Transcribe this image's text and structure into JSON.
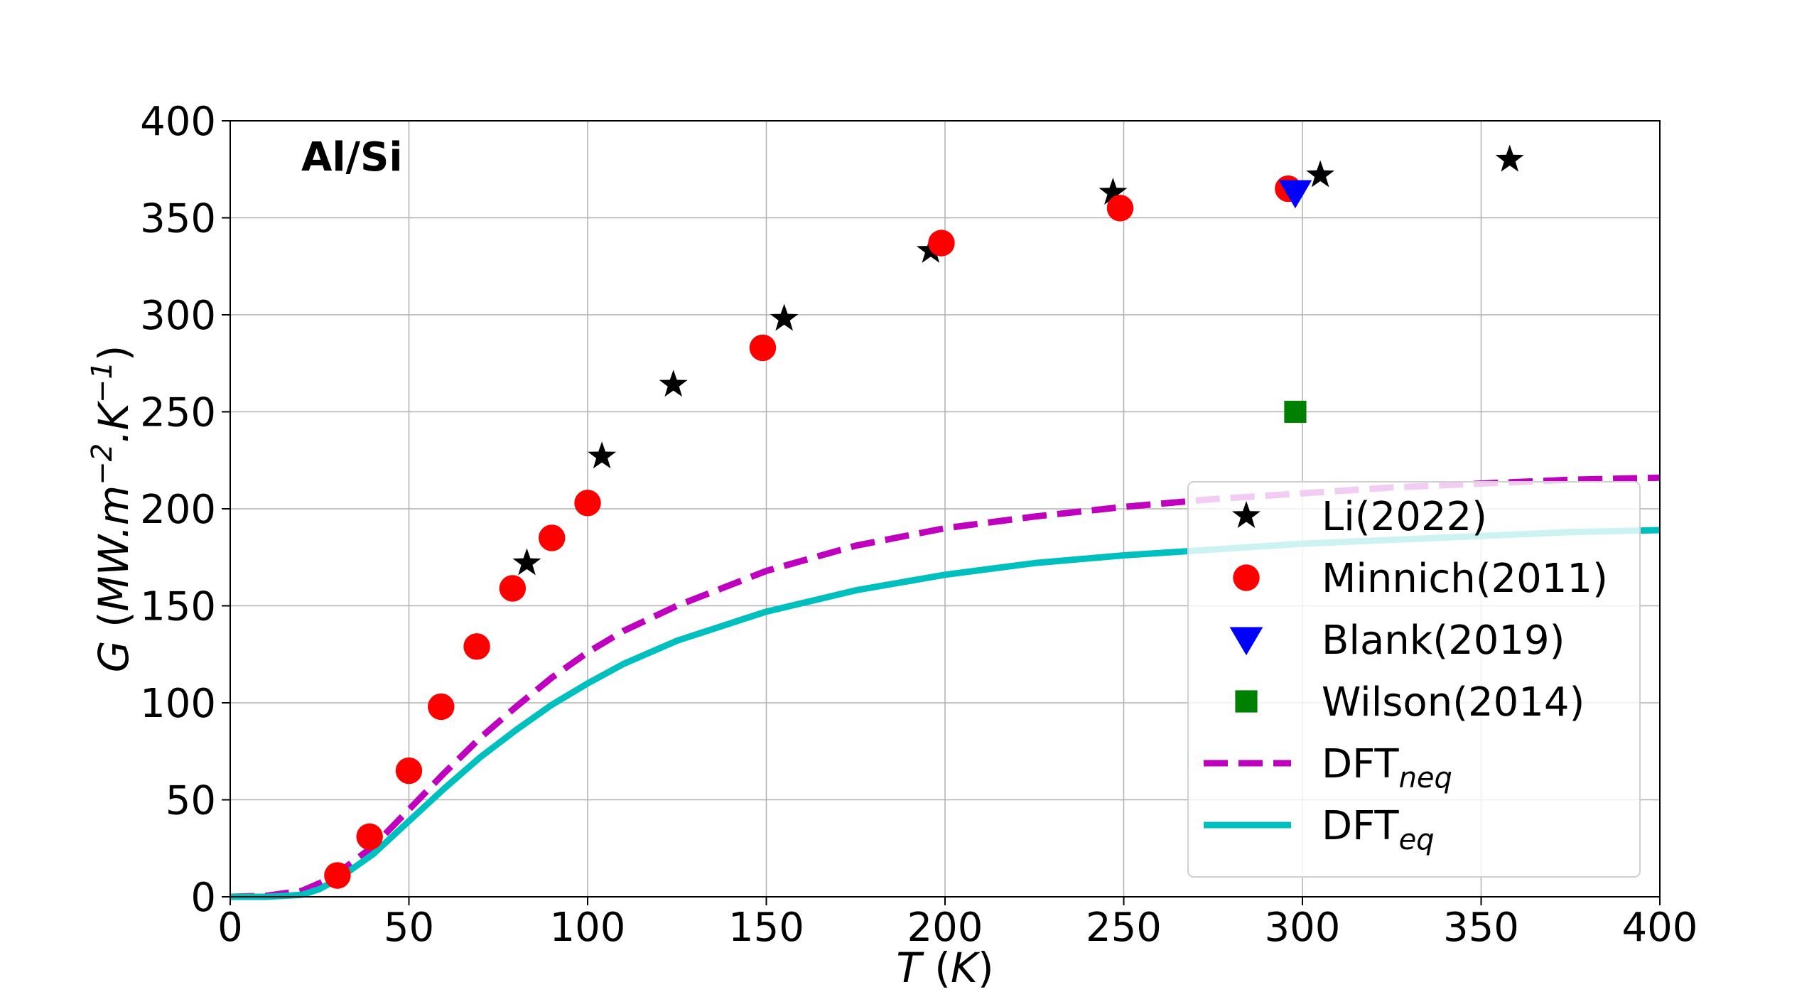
{
  "chart_data": {
    "type": "scatter",
    "title": "",
    "annotation": "Al/Si",
    "xlabel": {
      "var": "T",
      "unit": "K"
    },
    "ylabel": {
      "var": "G",
      "unit": "MW.m",
      "exp1": "−2",
      "unit2": ".K",
      "exp2": "−1"
    },
    "xlim": [
      0,
      400
    ],
    "ylim": [
      0,
      400
    ],
    "xticks": [
      0,
      50,
      100,
      150,
      200,
      250,
      300,
      350,
      400
    ],
    "yticks": [
      0,
      50,
      100,
      150,
      200,
      250,
      300,
      350,
      400
    ],
    "grid": true,
    "legend_position": "lower-right",
    "series": [
      {
        "name": "Li(2022)",
        "kind": "points",
        "marker": "star",
        "color": "#000000",
        "x": [
          83,
          104,
          124,
          155,
          196,
          247,
          305,
          358
        ],
        "y": [
          172,
          227,
          264,
          298,
          333,
          363,
          372,
          380
        ]
      },
      {
        "name": "Minnich(2011)",
        "kind": "points",
        "marker": "circle",
        "color": "#ff0000",
        "x": [
          30,
          39,
          50,
          59,
          69,
          79,
          90,
          100,
          149,
          199,
          249,
          296
        ],
        "y": [
          11,
          31,
          65,
          98,
          129,
          159,
          185,
          203,
          283,
          337,
          355,
          365
        ]
      },
      {
        "name": "Blank(2019)",
        "kind": "points",
        "marker": "triangle-down",
        "color": "#0000ff",
        "x": [
          298
        ],
        "y": [
          363
        ]
      },
      {
        "name": "Wilson(2014)",
        "kind": "points",
        "marker": "square",
        "color": "#008000",
        "x": [
          298
        ],
        "y": [
          250
        ]
      },
      {
        "name": "DFT",
        "sub": "neq",
        "kind": "line",
        "style": "dashed",
        "color": "#bf00bf",
        "x": [
          0,
          10,
          20,
          25,
          30,
          40,
          50,
          60,
          70,
          80,
          90,
          100,
          110,
          125,
          150,
          175,
          200,
          225,
          250,
          275,
          300,
          325,
          350,
          375,
          400
        ],
        "y": [
          0,
          0.5,
          3,
          7,
          12,
          26,
          45,
          64,
          82,
          98,
          113,
          126,
          137,
          150,
          168,
          181,
          190,
          196,
          201,
          205,
          208,
          211,
          213,
          215,
          216
        ]
      },
      {
        "name": "DFT",
        "sub": "eq",
        "kind": "line",
        "style": "solid",
        "color": "#00bfbf",
        "x": [
          0,
          10,
          20,
          25,
          30,
          40,
          50,
          60,
          70,
          80,
          90,
          100,
          110,
          125,
          150,
          175,
          200,
          225,
          250,
          275,
          300,
          325,
          350,
          375,
          400
        ],
        "y": [
          0,
          0,
          1,
          4,
          9,
          22,
          39,
          56,
          72,
          86,
          99,
          110,
          120,
          132,
          147,
          158,
          166,
          172,
          176,
          179,
          182,
          184,
          186,
          188,
          189
        ]
      }
    ]
  }
}
